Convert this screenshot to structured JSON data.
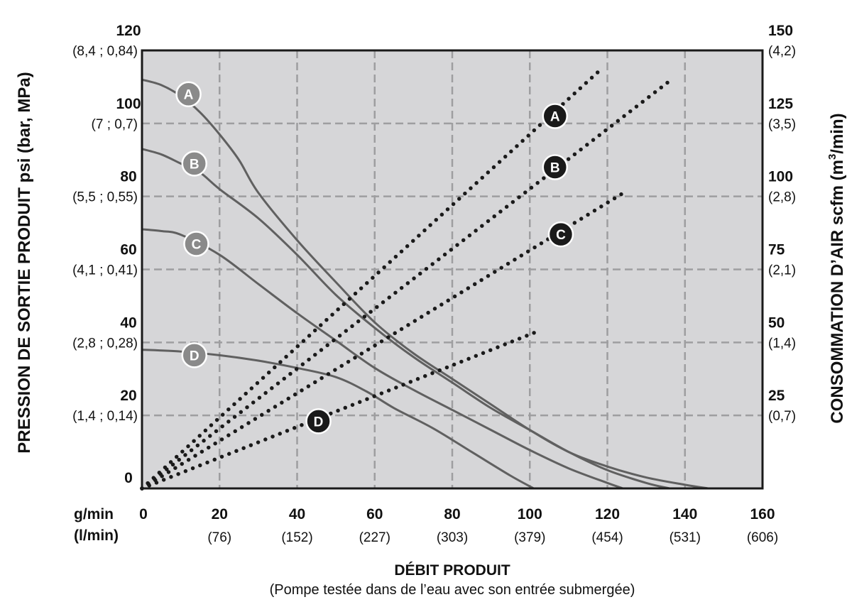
{
  "chart_data": {
    "type": "line",
    "x_axis": {
      "title": "DÉBIT PRODUIT",
      "caption": "(Pompe testée dans de l’eau avec son entrée submergée)",
      "unit_labels": [
        "g/min",
        "(l/min)"
      ],
      "range": [
        0,
        160
      ],
      "ticks": [
        {
          "value": 0,
          "label": "0",
          "sub": ""
        },
        {
          "value": 20,
          "label": "20",
          "sub": "(76)"
        },
        {
          "value": 40,
          "label": "40",
          "sub": "(152)"
        },
        {
          "value": 60,
          "label": "60",
          "sub": "(227)"
        },
        {
          "value": 80,
          "label": "80",
          "sub": "(303)"
        },
        {
          "value": 100,
          "label": "100",
          "sub": "(379)"
        },
        {
          "value": 120,
          "label": "120",
          "sub": "(454)"
        },
        {
          "value": 140,
          "label": "140",
          "sub": "(531)"
        },
        {
          "value": 160,
          "label": "160",
          "sub": "(606)"
        }
      ]
    },
    "y_left": {
      "title": "PRESSION DE SORTIE PRODUIT psi (bar, MPa)",
      "range": [
        0,
        120
      ],
      "ticks": [
        {
          "value": 0,
          "label": "0",
          "sub": ""
        },
        {
          "value": 20,
          "label": "20",
          "sub": "(1,4 ; 0,14)"
        },
        {
          "value": 40,
          "label": "40",
          "sub": "(2,8 ; 0,28)"
        },
        {
          "value": 60,
          "label": "60",
          "sub": "(4,1 ; 0,41)"
        },
        {
          "value": 80,
          "label": "80",
          "sub": "(5,5 ; 0,55)"
        },
        {
          "value": 100,
          "label": "100",
          "sub": "(7 ; 0,7)"
        },
        {
          "value": 120,
          "label": "120",
          "sub": "(8,4 ; 0,84)"
        }
      ]
    },
    "y_right": {
      "title_main": "CONSOMMATION D’AIR scfm (m",
      "title_sup": "3",
      "title_end": "/min)",
      "range": [
        0,
        150
      ],
      "ticks": [
        {
          "value": 25,
          "label": "25",
          "sub": "(0,7)"
        },
        {
          "value": 50,
          "label": "50",
          "sub": "(1,4)"
        },
        {
          "value": 75,
          "label": "75",
          "sub": "(2,1)"
        },
        {
          "value": 100,
          "label": "100",
          "sub": "(2,8)"
        },
        {
          "value": 125,
          "label": "125",
          "sub": "(3,5)"
        },
        {
          "value": 150,
          "label": "150",
          "sub": "(4,2)"
        }
      ]
    },
    "grid": true,
    "series": [
      {
        "name": "A",
        "kind": "pressure",
        "axis": "left",
        "points": [
          [
            0,
            112
          ],
          [
            5,
            110.5
          ],
          [
            10,
            107.5
          ],
          [
            15,
            103
          ],
          [
            20,
            97
          ],
          [
            25,
            90
          ],
          [
            30,
            81
          ],
          [
            40,
            68
          ],
          [
            50,
            56.5
          ],
          [
            60,
            45.5
          ],
          [
            70,
            37
          ],
          [
            80,
            30
          ],
          [
            90,
            23
          ],
          [
            100,
            16
          ],
          [
            110,
            10
          ],
          [
            120,
            6
          ],
          [
            130,
            3
          ],
          [
            140,
            1
          ],
          [
            146,
            0
          ]
        ],
        "label_at": [
          12,
          108
        ]
      },
      {
        "name": "B",
        "kind": "pressure",
        "axis": "left",
        "points": [
          [
            0,
            93
          ],
          [
            5,
            91.5
          ],
          [
            10,
            89
          ],
          [
            15,
            86.5
          ],
          [
            20,
            82
          ],
          [
            30,
            74
          ],
          [
            40,
            64
          ],
          [
            50,
            53
          ],
          [
            60,
            44
          ],
          [
            70,
            36
          ],
          [
            80,
            29
          ],
          [
            90,
            22
          ],
          [
            100,
            16
          ],
          [
            110,
            10
          ],
          [
            120,
            5
          ],
          [
            130,
            1.5
          ],
          [
            136,
            0
          ]
        ],
        "label_at": [
          13.5,
          89
        ]
      },
      {
        "name": "C",
        "kind": "pressure",
        "axis": "left",
        "points": [
          [
            0,
            71
          ],
          [
            5,
            70.5
          ],
          [
            10,
            69.5
          ],
          [
            20,
            64
          ],
          [
            30,
            56
          ],
          [
            40,
            48
          ],
          [
            50,
            40.5
          ],
          [
            60,
            33
          ],
          [
            70,
            27
          ],
          [
            80,
            21.5
          ],
          [
            90,
            16
          ],
          [
            100,
            10.5
          ],
          [
            110,
            5.5
          ],
          [
            120,
            1.5
          ],
          [
            124,
            0
          ]
        ],
        "label_at": [
          14,
          67
        ]
      },
      {
        "name": "D",
        "kind": "pressure",
        "axis": "left",
        "points": [
          [
            0,
            38
          ],
          [
            10,
            37.5
          ],
          [
            20,
            36.5
          ],
          [
            30,
            35
          ],
          [
            40,
            33
          ],
          [
            50,
            30.5
          ],
          [
            58,
            26.5
          ],
          [
            65,
            22
          ],
          [
            75,
            16.5
          ],
          [
            85,
            10
          ],
          [
            95,
            3.5
          ],
          [
            101,
            0
          ]
        ],
        "label_at": [
          13.5,
          36.5
        ]
      },
      {
        "name": "A",
        "kind": "air",
        "axis": "right",
        "points": [
          [
            0,
            0
          ],
          [
            117.5,
            142.5
          ]
        ],
        "label_at": [
          106.5,
          127.5
        ]
      },
      {
        "name": "B",
        "kind": "air",
        "axis": "right",
        "points": [
          [
            0,
            0
          ],
          [
            136.5,
            140
          ]
        ],
        "label_at": [
          106.5,
          110
        ]
      },
      {
        "name": "C",
        "kind": "air",
        "axis": "right",
        "points": [
          [
            0,
            0
          ],
          [
            124.5,
            101.5
          ]
        ],
        "label_at": [
          108,
          87
        ]
      },
      {
        "name": "D",
        "kind": "air",
        "axis": "right",
        "points": [
          [
            0,
            0
          ],
          [
            101.5,
            53.5
          ]
        ],
        "label_at": [
          45.5,
          23
        ]
      }
    ],
    "colors": {
      "plot_bg": "#d6d6d8",
      "grid": "#9e9ea0",
      "pressure_line": "#606060",
      "pressure_marker": "#8a8a8a",
      "air_dot": "#1a1a1a",
      "air_marker": "#1a1a1a",
      "frame": "#1a1a1a"
    }
  }
}
